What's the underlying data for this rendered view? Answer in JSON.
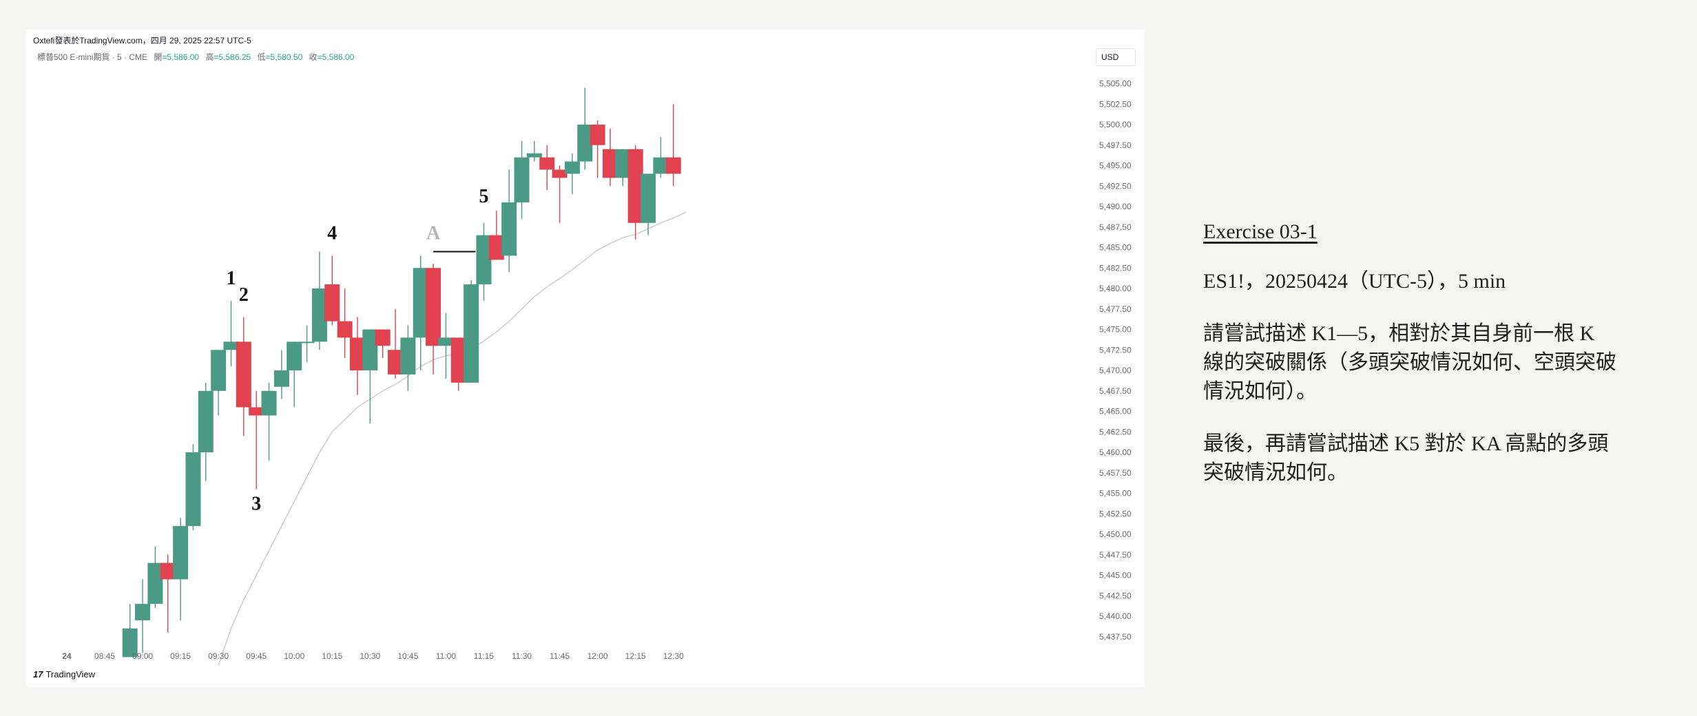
{
  "header": {
    "source_line": "Oxtefi發表於TradingView.com，四月 29, 2025 22:57 UTC-5",
    "symbol_desc": "標普500 E-mini期貨 · 5 · CME",
    "open_label": "開",
    "open_value": "=5,586.00",
    "high_label": "高",
    "high_value": "=5,586.25",
    "low_label": "低",
    "low_value": "=5,580.50",
    "close_label": "收",
    "close_value": "=5,586.00",
    "currency": "USD"
  },
  "footer": {
    "logo_mark": "17",
    "logo_text": "TradingView"
  },
  "exercise": {
    "title": "Exercise 03-1",
    "meta": "ES1!，20250424（UTC-5），5 min",
    "q1": "請嘗試描述 K1—5，相對於其自身前一根 K 線的突破關係（多頭突破情況如何、空頭突破情況如何）。",
    "q2": "最後，再請嘗試描述 K5 對於 KA 高點的多頭突破情況如何。"
  },
  "colors": {
    "bull": "#4a9a86",
    "bear": "#e0434f",
    "ma": "#c9c9c9",
    "grid_text": "#6a6d78"
  },
  "chart_data": {
    "type": "candlestick",
    "y_range": [
      5434.5,
      5509.5
    ],
    "y_ticks": [
      "5,505.00",
      "5,502.50",
      "5,500.00",
      "5,497.50",
      "5,495.00",
      "5,492.50",
      "5,490.00",
      "5,487.50",
      "5,485.00",
      "5,482.50",
      "5,480.00",
      "5,477.50",
      "5,475.00",
      "5,472.50",
      "5,470.00",
      "5,467.50",
      "5,465.00",
      "5,462.50",
      "5,460.00",
      "5,457.50",
      "5,455.00",
      "5,452.50",
      "5,450.00",
      "5,447.50",
      "5,445.00",
      "5,442.50",
      "5,440.00",
      "5,437.50"
    ],
    "x_ticks": [
      "24",
      "08:45",
      "09:00",
      "09:15",
      "09:30",
      "09:45",
      "10:00",
      "10:15",
      "10:30",
      "10:45",
      "11:00",
      "11:15",
      "11:30",
      "11:45",
      "12:00",
      "12:15",
      "12:30"
    ],
    "candles": [
      {
        "t": "08:55",
        "o": 5435.0,
        "h": 5441.5,
        "l": 5435.0,
        "c": 5438.5
      },
      {
        "t": "09:00",
        "o": 5439.5,
        "h": 5444.5,
        "l": 5435.5,
        "c": 5441.5
      },
      {
        "t": "09:05",
        "o": 5441.5,
        "h": 5448.5,
        "l": 5441.0,
        "c": 5446.5
      },
      {
        "t": "09:10",
        "o": 5446.5,
        "h": 5447.5,
        "l": 5438.0,
        "c": 5444.5
      },
      {
        "t": "09:15",
        "o": 5444.5,
        "h": 5452.0,
        "l": 5439.5,
        "c": 5451.0
      },
      {
        "t": "09:20",
        "o": 5451.0,
        "h": 5461.0,
        "l": 5450.5,
        "c": 5460.0
      },
      {
        "t": "09:25",
        "o": 5460.0,
        "h": 5468.5,
        "l": 5456.5,
        "c": 5467.5
      },
      {
        "t": "09:30",
        "o": 5467.5,
        "h": 5472.5,
        "l": 5464.5,
        "c": 5472.5
      },
      {
        "t": "09:35",
        "o": 5472.5,
        "h": 5478.5,
        "l": 5470.5,
        "c": 5473.5
      },
      {
        "t": "09:40",
        "o": 5473.5,
        "h": 5476.5,
        "l": 5462.0,
        "c": 5465.5
      },
      {
        "t": "09:45",
        "o": 5465.5,
        "h": 5467.5,
        "l": 5455.5,
        "c": 5464.5
      },
      {
        "t": "09:50",
        "o": 5464.5,
        "h": 5468.5,
        "l": 5459.0,
        "c": 5467.5
      },
      {
        "t": "09:55",
        "o": 5468.0,
        "h": 5472.5,
        "l": 5466.5,
        "c": 5470.0
      },
      {
        "t": "10:00",
        "o": 5470.0,
        "h": 5473.5,
        "l": 5465.5,
        "c": 5473.5
      },
      {
        "t": "10:05",
        "o": 5473.5,
        "h": 5475.5,
        "l": 5471.0,
        "c": 5473.5
      },
      {
        "t": "10:10",
        "o": 5473.5,
        "h": 5484.5,
        "l": 5472.5,
        "c": 5480.0
      },
      {
        "t": "10:15",
        "o": 5480.5,
        "h": 5484.0,
        "l": 5475.5,
        "c": 5476.0
      },
      {
        "t": "10:20",
        "o": 5476.0,
        "h": 5480.0,
        "l": 5471.5,
        "c": 5474.0
      },
      {
        "t": "10:25",
        "o": 5474.0,
        "h": 5476.5,
        "l": 5467.0,
        "c": 5470.0
      },
      {
        "t": "10:30",
        "o": 5470.0,
        "h": 5475.0,
        "l": 5463.5,
        "c": 5475.0
      },
      {
        "t": "10:35",
        "o": 5475.0,
        "h": 5475.0,
        "l": 5471.5,
        "c": 5473.0
      },
      {
        "t": "10:40",
        "o": 5472.5,
        "h": 5477.5,
        "l": 5469.0,
        "c": 5469.5
      },
      {
        "t": "10:45",
        "o": 5469.5,
        "h": 5475.5,
        "l": 5467.5,
        "c": 5474.0
      },
      {
        "t": "10:50",
        "o": 5474.0,
        "h": 5484.0,
        "l": 5470.0,
        "c": 5482.5
      },
      {
        "t": "10:55",
        "o": 5482.5,
        "h": 5483.0,
        "l": 5469.5,
        "c": 5473.0
      },
      {
        "t": "11:00",
        "o": 5473.0,
        "h": 5477.0,
        "l": 5469.0,
        "c": 5474.0
      },
      {
        "t": "11:05",
        "o": 5474.0,
        "h": 5474.0,
        "l": 5467.5,
        "c": 5468.5
      },
      {
        "t": "11:10",
        "o": 5468.5,
        "h": 5481.0,
        "l": 5468.5,
        "c": 5480.5
      },
      {
        "t": "11:15",
        "o": 5480.5,
        "h": 5488.0,
        "l": 5478.5,
        "c": 5486.5
      },
      {
        "t": "11:20",
        "o": 5486.5,
        "h": 5489.5,
        "l": 5483.5,
        "c": 5483.5
      },
      {
        "t": "11:25",
        "o": 5484.0,
        "h": 5494.5,
        "l": 5482.0,
        "c": 5490.5
      },
      {
        "t": "11:30",
        "o": 5490.5,
        "h": 5498.0,
        "l": 5488.5,
        "c": 5496.0
      },
      {
        "t": "11:35",
        "o": 5496.0,
        "h": 5498.0,
        "l": 5495.5,
        "c": 5496.5
      },
      {
        "t": "11:40",
        "o": 5496.0,
        "h": 5497.5,
        "l": 5492.0,
        "c": 5494.5
      },
      {
        "t": "11:45",
        "o": 5494.5,
        "h": 5495.0,
        "l": 5488.0,
        "c": 5493.5
      },
      {
        "t": "11:50",
        "o": 5494.0,
        "h": 5496.5,
        "l": 5491.5,
        "c": 5495.5
      },
      {
        "t": "11:55",
        "o": 5495.5,
        "h": 5504.5,
        "l": 5494.5,
        "c": 5500.0
      },
      {
        "t": "12:00",
        "o": 5500.0,
        "h": 5500.5,
        "l": 5493.5,
        "c": 5497.5
      },
      {
        "t": "12:05",
        "o": 5497.0,
        "h": 5499.5,
        "l": 5492.5,
        "c": 5493.5
      },
      {
        "t": "12:10",
        "o": 5493.5,
        "h": 5497.0,
        "l": 5492.5,
        "c": 5497.0
      },
      {
        "t": "12:15",
        "o": 5497.0,
        "h": 5497.5,
        "l": 5486.0,
        "c": 5488.0
      },
      {
        "t": "12:20",
        "o": 5488.0,
        "h": 5494.0,
        "l": 5486.5,
        "c": 5494.0
      },
      {
        "t": "12:25",
        "o": 5494.0,
        "h": 5498.5,
        "l": 5493.5,
        "c": 5496.0
      },
      {
        "t": "12:30",
        "o": 5496.0,
        "h": 5502.5,
        "l": 5492.5,
        "c": 5494.0
      }
    ],
    "moving_average": [
      {
        "t": "09:30",
        "v": 5434.0
      },
      {
        "t": "09:35",
        "v": 5438.5
      },
      {
        "t": "09:40",
        "v": 5442.0
      },
      {
        "t": "09:45",
        "v": 5445.0
      },
      {
        "t": "09:50",
        "v": 5448.0
      },
      {
        "t": "09:55",
        "v": 5451.0
      },
      {
        "t": "10:00",
        "v": 5454.0
      },
      {
        "t": "10:05",
        "v": 5457.0
      },
      {
        "t": "10:10",
        "v": 5460.0
      },
      {
        "t": "10:15",
        "v": 5462.5
      },
      {
        "t": "10:20",
        "v": 5464.0
      },
      {
        "t": "10:25",
        "v": 5465.5
      },
      {
        "t": "10:30",
        "v": 5466.5
      },
      {
        "t": "10:35",
        "v": 5467.5
      },
      {
        "t": "10:40",
        "v": 5468.3
      },
      {
        "t": "10:45",
        "v": 5469.3
      },
      {
        "t": "10:50",
        "v": 5470.5
      },
      {
        "t": "10:55",
        "v": 5471.3
      },
      {
        "t": "11:00",
        "v": 5471.8
      },
      {
        "t": "11:05",
        "v": 5472.0
      },
      {
        "t": "11:10",
        "v": 5472.6
      },
      {
        "t": "11:15",
        "v": 5473.6
      },
      {
        "t": "11:20",
        "v": 5474.7
      },
      {
        "t": "11:25",
        "v": 5476.0
      },
      {
        "t": "11:30",
        "v": 5477.5
      },
      {
        "t": "11:35",
        "v": 5479.0
      },
      {
        "t": "11:40",
        "v": 5480.2
      },
      {
        "t": "11:45",
        "v": 5481.2
      },
      {
        "t": "11:50",
        "v": 5482.3
      },
      {
        "t": "11:55",
        "v": 5483.5
      },
      {
        "t": "12:00",
        "v": 5484.7
      },
      {
        "t": "12:05",
        "v": 5485.5
      },
      {
        "t": "12:10",
        "v": 5486.2
      },
      {
        "t": "12:15",
        "v": 5486.6
      },
      {
        "t": "12:20",
        "v": 5487.3
      },
      {
        "t": "12:25",
        "v": 5488.0
      },
      {
        "t": "12:30",
        "v": 5488.6
      },
      {
        "t": "12:35",
        "v": 5489.3
      }
    ],
    "annotations": [
      {
        "label": "1",
        "t": "09:35",
        "y": 5480.5,
        "color": "#111111"
      },
      {
        "label": "2",
        "t": "09:40",
        "y": 5478.5,
        "color": "#111111"
      },
      {
        "label": "3",
        "t": "09:45",
        "y": 5453.0,
        "color": "#111111"
      },
      {
        "label": "4",
        "t": "10:15",
        "y": 5486.0,
        "color": "#111111"
      },
      {
        "label": "A",
        "t": "10:55",
        "y": 5486.0,
        "color": "#b5b5b5"
      },
      {
        "label": "5",
        "t": "11:15",
        "y": 5490.5,
        "color": "#111111"
      }
    ],
    "hline": {
      "t_start": "10:55",
      "t_end": "11:15",
      "y": 5484.5
    }
  }
}
